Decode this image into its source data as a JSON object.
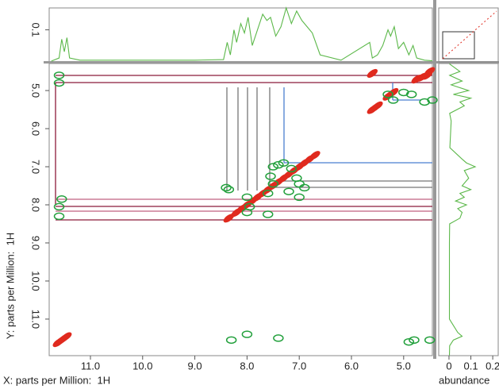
{
  "chart_data": [
    {
      "type": "scatter",
      "xlabel": "X: parts per Million:  1H",
      "ylabel": "Y: parts per Million:  1H",
      "xlim": [
        11.79,
        4.45
      ],
      "ylim": [
        4.29,
        11.96
      ],
      "xticks": [
        {
          "value": 11,
          "label": "11.0"
        },
        {
          "value": 10,
          "label": "10.0"
        },
        {
          "value": 9,
          "label": "9.0"
        },
        {
          "value": 8,
          "label": "8.0"
        },
        {
          "value": 7,
          "label": "7.0"
        },
        {
          "value": 6,
          "label": "6.0"
        },
        {
          "value": 5,
          "label": "5.0"
        }
      ],
      "yticks": [
        {
          "value": 5,
          "label": "5.0"
        },
        {
          "value": 6,
          "label": "6.0"
        },
        {
          "value": 7,
          "label": "7.0"
        },
        {
          "value": 8,
          "label": "8.0"
        },
        {
          "value": 9,
          "label": "9.0"
        },
        {
          "value": 10,
          "label": "10.0"
        },
        {
          "value": 11,
          "label": "11.0"
        }
      ],
      "series": [
        {
          "color": "#e02a1e",
          "x": [
            11.62,
            11.58,
            11.54,
            11.5,
            11.46,
            8.35,
            8.2,
            8.1,
            8.0,
            7.9,
            7.8,
            7.7,
            7.6,
            7.5,
            7.4,
            7.3,
            7.2,
            7.1,
            7.0,
            6.9,
            6.8,
            6.7,
            5.6,
            5.55,
            5.5,
            5.3,
            5.25,
            5.2,
            4.75,
            4.65,
            4.55,
            4.5,
            5.6
          ],
          "values": [
            11.62,
            11.58,
            11.54,
            11.5,
            11.46,
            8.35,
            8.2,
            8.1,
            8.0,
            7.9,
            7.8,
            7.7,
            7.6,
            7.5,
            7.4,
            7.3,
            7.2,
            7.1,
            7.0,
            6.9,
            6.8,
            6.7,
            5.5,
            5.45,
            5.4,
            5.15,
            5.1,
            5.05,
            4.7,
            4.65,
            4.6,
            4.5,
            4.55
          ]
        },
        {
          "color": "#22a03c",
          "x": [
            11.6,
            11.6,
            11.55,
            11.6,
            11.6,
            8.4,
            8.35,
            8.0,
            7.95,
            7.6,
            7.55,
            7.5,
            7.4,
            7.3,
            7.15,
            7.05,
            7.0,
            6.9,
            7.5,
            7.2,
            7.0,
            8.0,
            7.6,
            5.3,
            5.2,
            5.0,
            4.85,
            4.6,
            4.45,
            8.3,
            8.0,
            7.4,
            4.8,
            4.5,
            4.9
          ],
          "values": [
            4.6,
            4.8,
            7.85,
            8.05,
            8.3,
            7.55,
            7.6,
            7.8,
            8.05,
            7.7,
            7.25,
            7.0,
            6.95,
            6.9,
            7.05,
            7.3,
            7.45,
            7.55,
            7.45,
            7.65,
            7.8,
            8.2,
            8.25,
            5.1,
            5.25,
            5.05,
            5.1,
            5.3,
            5.25,
            11.55,
            11.4,
            11.5,
            11.55,
            11.55,
            11.6
          ]
        }
      ]
    },
    {
      "type": "line",
      "color": "#5cb84a",
      "xlim": [
        11.79,
        4.45
      ],
      "ylim": [
        0,
        0.17
      ],
      "yticks": [
        0.1
      ],
      "x": [
        11.75,
        11.6,
        11.55,
        11.5,
        11.45,
        11.4,
        11.2,
        9,
        8.45,
        8.38,
        8.32,
        8.25,
        8.2,
        8.12,
        8.05,
        7.98,
        7.9,
        7.8,
        7.7,
        7.62,
        7.55,
        7.45,
        7.35,
        7.25,
        7.15,
        7.05,
        6.95,
        6.85,
        6.75,
        6.6,
        6.2,
        5.65,
        5.6,
        5.5,
        5.4,
        5.3,
        5.25,
        5.18,
        5.1,
        5.0,
        4.9,
        4.82,
        4.75,
        4.6,
        4.45
      ],
      "values": [
        0,
        0.01,
        0.07,
        0.03,
        0.075,
        0.01,
        0.003,
        0.003,
        0.005,
        0.06,
        0.02,
        0.1,
        0.06,
        0.12,
        0.09,
        0.14,
        0.05,
        0.1,
        0.15,
        0.13,
        0.14,
        0.08,
        0.11,
        0.17,
        0.12,
        0.16,
        0.13,
        0.11,
        0.09,
        0.02,
        0.003,
        0.06,
        0.01,
        0.02,
        0.05,
        0.1,
        0.08,
        0.11,
        0.04,
        0.06,
        0.02,
        0.05,
        0.01,
        0.003,
        0.001
      ]
    },
    {
      "type": "line",
      "orientation": "vertical",
      "color": "#5cb84a",
      "xlabel": "abundance",
      "xlim": [
        -0.047,
        0.225
      ],
      "xticks": [
        0,
        0.1,
        0.2
      ],
      "ylim": [
        4.29,
        11.96
      ],
      "x": [
        4.3,
        4.5,
        4.6,
        4.75,
        4.85,
        5.0,
        5.1,
        5.2,
        5.3,
        5.4,
        5.6,
        5.8,
        6.5,
        6.8,
        6.9,
        7.0,
        7.1,
        7.3,
        7.5,
        7.6,
        7.7,
        7.8,
        7.9,
        8.0,
        8.1,
        8.2,
        8.35,
        8.5,
        9,
        10,
        11,
        11.35,
        11.45,
        11.55,
        11.7,
        11.95
      ],
      "values": [
        0.002,
        0.05,
        0.003,
        0.06,
        0.01,
        0.09,
        0.02,
        0.1,
        0.05,
        0.07,
        0.003,
        0.01,
        0.004,
        0.06,
        0.08,
        0.12,
        0.07,
        0.09,
        0.06,
        0.1,
        0.05,
        0.07,
        0.03,
        0.08,
        0.04,
        0.06,
        0.05,
        0.003,
        0.002,
        0.002,
        0.002,
        0.04,
        0.06,
        0.02,
        0.003,
        0.002
      ]
    }
  ]
}
